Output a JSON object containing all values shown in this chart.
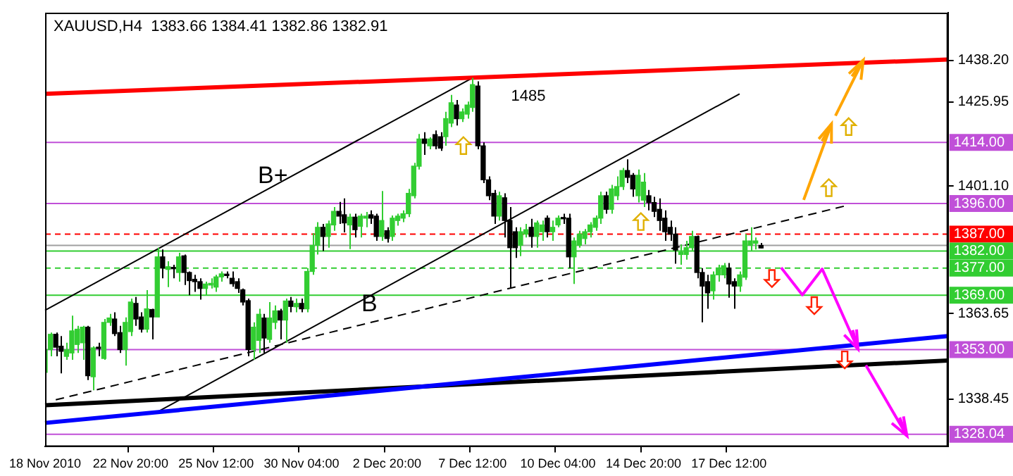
{
  "chart_data": {
    "type": "candlestick",
    "title": "XAUUSD,H4  1383.66 1384.41 1382.86 1382.91",
    "colors": [
      "#32cd32",
      "#32cd32",
      "#000000",
      "#000000",
      "#32cd32",
      "#32cd32",
      "#32cd32",
      "#32cd32",
      "#000000",
      "#32cd32",
      "#000000",
      "#32cd32",
      "#32cd32",
      "#000000",
      "#000000",
      "#32cd32",
      "#32cd32",
      "#000000",
      "#000000",
      "#32cd32",
      "#000000",
      "#32cd32",
      "#000000",
      "#32cd32",
      "#000000",
      "#32cd32",
      "#000000",
      "#000000",
      "#000000",
      "#000000",
      "#32cd32",
      "#32cd32",
      "#32cd32",
      "#32cd32",
      "#000000",
      "#000000",
      "#000000",
      "#000000",
      "#000000",
      "#32cd32",
      "#32cd32",
      "#000000",
      "#32cd32",
      "#32cd32",
      "#000000",
      "#32cd32",
      "#000000",
      "#32cd32",
      "#000000",
      "#32cd32",
      "#32cd32",
      "#32cd32",
      "#000000",
      "#32cd32",
      "#32cd32",
      "#000000",
      "#000000",
      "#32cd32",
      "#000000",
      "#32cd32",
      "#32cd32",
      "#000000",
      "#000000",
      "#32cd32",
      "#000000",
      "#32cd32",
      "#32cd32",
      "#32cd32",
      "#32cd32",
      "#32cd32",
      "#32cd32",
      "#000000",
      "#32cd32",
      "#000000",
      "#000000",
      "#32cd32",
      "#32cd32",
      "#000000",
      "#32cd32",
      "#32cd32",
      "#32cd32",
      "#000000",
      "#000000",
      "#000000",
      "#000000",
      "#32cd32",
      "#000000",
      "#000000",
      "#000000",
      "#32cd32",
      "#32cd32",
      "#000000",
      "#32cd32",
      "#32cd32",
      "#000000",
      "#32cd32",
      "#32cd32",
      "#000000",
      "#000000",
      "#32cd32",
      "#32cd32",
      "#32cd32",
      "#32cd32",
      "#32cd32",
      "#32cd32",
      "#000000",
      "#32cd32",
      "#32cd32",
      "#32cd32",
      "#000000",
      "#000000",
      "#32cd32",
      "#32cd32",
      "#000000",
      "#000000",
      "#000000",
      "#000000",
      "#000000",
      "#000000",
      "#32cd32",
      "#32cd32",
      "#32cd32",
      "#000000",
      "#000000",
      "#000000",
      "#32cd32",
      "#32cd32",
      "#32cd32",
      "#000000",
      "#000000",
      "#32cd32",
      "#32cd32",
      "#32cd32",
      "#32cd32",
      "#000000",
      null,
      null,
      null,
      null,
      null,
      null,
      null,
      null,
      null,
      null,
      null,
      null,
      null,
      null,
      null,
      null,
      null,
      null,
      null,
      null,
      null,
      null,
      null,
      null,
      null,
      null,
      null,
      null,
      null,
      null,
      null,
      null,
      null,
      null,
      null
    ],
    "categories": [
      "18 Nov 2010",
      null,
      null,
      null,
      null,
      null,
      null,
      null,
      null,
      null,
      null,
      null,
      null,
      null,
      null,
      null,
      "22 Nov 20:00",
      null,
      null,
      null,
      null,
      null,
      null,
      null,
      null,
      null,
      null,
      null,
      null,
      null,
      null,
      null,
      "25 Nov 12:00",
      null,
      null,
      null,
      null,
      null,
      null,
      null,
      null,
      null,
      null,
      null,
      null,
      null,
      null,
      null,
      "30 Nov 04:00",
      null,
      null,
      null,
      null,
      null,
      null,
      null,
      null,
      null,
      null,
      null,
      null,
      null,
      null,
      null,
      "2 Dec 20:00",
      null,
      null,
      null,
      null,
      null,
      null,
      null,
      null,
      null,
      null,
      null,
      null,
      null,
      null,
      null,
      "7 Dec 12:00",
      null,
      null,
      null,
      null,
      null,
      null,
      null,
      null,
      null,
      null,
      null,
      null,
      null,
      null,
      null,
      "10 Dec 04:00",
      null,
      null,
      null,
      null,
      null,
      null,
      null,
      null,
      null,
      null,
      null,
      null,
      null,
      null,
      null,
      "14 Dec 20:00",
      null,
      null,
      null,
      null,
      null,
      null,
      null,
      null,
      null,
      null,
      null,
      null,
      null,
      null,
      null,
      "17 Dec 12:00",
      null,
      null,
      null,
      null,
      null,
      null,
      null,
      null,
      null,
      null,
      null,
      null,
      null,
      null,
      null,
      null,
      null,
      null,
      null,
      null,
      null,
      null,
      null,
      null,
      null,
      null,
      null,
      null,
      null,
      null,
      null,
      null,
      null,
      null,
      null,
      null,
      null,
      null,
      null,
      null,
      null
    ],
    "ohlc": [
      [
        1346.3,
        1353.7,
        1345.7,
        1353
      ],
      [
        1353,
        1358,
        1351,
        1357.5
      ],
      [
        1357.5,
        1358,
        1351,
        1353.7
      ],
      [
        1354,
        1357,
        1346,
        1352.5
      ],
      [
        1351,
        1355,
        1350,
        1353
      ],
      [
        1352,
        1363,
        1350,
        1358.5
      ],
      [
        1354.5,
        1360,
        1352,
        1359
      ],
      [
        1355,
        1360,
        1350,
        1359.6
      ],
      [
        1359.6,
        1360,
        1344,
        1345.3
      ],
      [
        1345,
        1354,
        1341,
        1353.5
      ],
      [
        1353.5,
        1355,
        1351,
        1353.3
      ],
      [
        1350.4,
        1362,
        1350,
        1361
      ],
      [
        1361,
        1363.5,
        1360,
        1362.3
      ],
      [
        1362,
        1364,
        1357,
        1357.7
      ],
      [
        1358,
        1360,
        1352,
        1353
      ],
      [
        1353,
        1362.5,
        1348.3,
        1361
      ],
      [
        1358.3,
        1368,
        1357,
        1367
      ],
      [
        1366.6,
        1368.5,
        1360,
        1362
      ],
      [
        1362.6,
        1364,
        1358,
        1359
      ],
      [
        1359,
        1370.5,
        1358,
        1365
      ],
      [
        1364.8,
        1365,
        1356,
        1362.6
      ],
      [
        1362.6,
        1383,
        1362.6,
        1380.3
      ],
      [
        1380.3,
        1382.5,
        1374,
        1377
      ],
      [
        1376.6,
        1379,
        1371.4,
        1377.4
      ],
      [
        1377,
        1378,
        1374,
        1376.8
      ],
      [
        1375.7,
        1381.5,
        1373,
        1380.3
      ],
      [
        1380.6,
        1381,
        1372,
        1375.7
      ],
      [
        1375.7,
        1376,
        1369,
        1373.3
      ],
      [
        1373.7,
        1375,
        1370,
        1373
      ],
      [
        1373,
        1374,
        1367.7,
        1371
      ],
      [
        1371,
        1373,
        1369,
        1372.3
      ],
      [
        1372,
        1374,
        1371,
        1372.5
      ],
      [
        1371.4,
        1375,
        1370,
        1374.4
      ],
      [
        1374.4,
        1376,
        1373,
        1375.3
      ],
      [
        1375,
        1376,
        1374,
        1374.8
      ],
      [
        1374,
        1376,
        1371.5,
        1372.4
      ],
      [
        1373,
        1374,
        1369.7,
        1371
      ],
      [
        1370.6,
        1371,
        1366,
        1367
      ],
      [
        1367.4,
        1368,
        1351,
        1353
      ],
      [
        1353,
        1361,
        1350,
        1359.6
      ],
      [
        1355.7,
        1365,
        1352,
        1363.4
      ],
      [
        1362.3,
        1363.5,
        1352,
        1356.4
      ],
      [
        1356,
        1367,
        1355,
        1362.3
      ],
      [
        1361,
        1366,
        1359,
        1364.4
      ],
      [
        1364.4,
        1365,
        1356,
        1361.7
      ],
      [
        1361.7,
        1368,
        1355,
        1367.3
      ],
      [
        1367.3,
        1368.5,
        1364,
        1365.7
      ],
      [
        1365.6,
        1368,
        1364,
        1366.6
      ],
      [
        1366.6,
        1368,
        1364,
        1365
      ],
      [
        1365,
        1377,
        1364,
        1376
      ],
      [
        1376,
        1387.3,
        1375,
        1383.7
      ],
      [
        1383.7,
        1390.5,
        1381,
        1389
      ],
      [
        1389,
        1390,
        1382,
        1386.3
      ],
      [
        1386.3,
        1391,
        1383,
        1390
      ],
      [
        1389.7,
        1395,
        1388,
        1393.7
      ],
      [
        1393.7,
        1396.5,
        1390,
        1392.3
      ],
      [
        1392.7,
        1397.5,
        1387.5,
        1390.3
      ],
      [
        1389.7,
        1393,
        1382.6,
        1392
      ],
      [
        1392,
        1393,
        1386,
        1388.3
      ],
      [
        1389.3,
        1393,
        1386,
        1392.3
      ],
      [
        1391.7,
        1393.5,
        1389,
        1392.3
      ],
      [
        1392.7,
        1394,
        1390,
        1391.7
      ],
      [
        1392.3,
        1393,
        1385,
        1386.3
      ],
      [
        1386.3,
        1399.7,
        1385,
        1391
      ],
      [
        1388,
        1389,
        1384.5,
        1385.7
      ],
      [
        1386.3,
        1392.5,
        1385,
        1391.7
      ],
      [
        1391,
        1393,
        1389.5,
        1392.3
      ],
      [
        1391.7,
        1394,
        1390.5,
        1393
      ],
      [
        1393,
        1400.3,
        1392,
        1399
      ],
      [
        1398.3,
        1408,
        1397.5,
        1407
      ],
      [
        1407,
        1416.5,
        1406,
        1415
      ],
      [
        1415,
        1417,
        1410.3,
        1413.7
      ],
      [
        1413,
        1415.5,
        1412,
        1415
      ],
      [
        1416.3,
        1417.5,
        1412,
        1413
      ],
      [
        1415.7,
        1417,
        1411.5,
        1412.3
      ],
      [
        1415.7,
        1423,
        1413,
        1421
      ],
      [
        1419.7,
        1428,
        1418.5,
        1425.7
      ],
      [
        1425,
        1426.5,
        1419,
        1421
      ],
      [
        1421,
        1424,
        1420,
        1423
      ],
      [
        1422.3,
        1426,
        1421,
        1425
      ],
      [
        1424.3,
        1433,
        1423,
        1431
      ],
      [
        1430.6,
        1432,
        1412,
        1413
      ],
      [
        1413,
        1414,
        1402,
        1403
      ],
      [
        1403,
        1404,
        1397,
        1398.3
      ],
      [
        1399,
        1400,
        1390,
        1392.3
      ],
      [
        1392.3,
        1399.5,
        1391,
        1398.3
      ],
      [
        1397.7,
        1399,
        1386,
        1391
      ],
      [
        1391,
        1395,
        1371,
        1383
      ],
      [
        1387.7,
        1389,
        1380,
        1383
      ],
      [
        1383.7,
        1389,
        1380.5,
        1387.7
      ],
      [
        1387,
        1390,
        1386,
        1388.3
      ],
      [
        1389,
        1391.5,
        1383,
        1386.3
      ],
      [
        1386.3,
        1391,
        1383,
        1390.3
      ],
      [
        1387.7,
        1391,
        1385,
        1389.7
      ],
      [
        1391.7,
        1392.5,
        1386,
        1387.7
      ],
      [
        1387.7,
        1391,
        1385,
        1389
      ],
      [
        1389.7,
        1392.5,
        1389,
        1391.7
      ],
      [
        1391.7,
        1393,
        1390,
        1391.5
      ],
      [
        1391.7,
        1393,
        1377,
        1380.3
      ],
      [
        1380.3,
        1386,
        1372.3,
        1385
      ],
      [
        1383.7,
        1388,
        1383,
        1387
      ],
      [
        1385.7,
        1388.5,
        1384,
        1387.7
      ],
      [
        1387.7,
        1390.5,
        1386,
        1389.7
      ],
      [
        1389,
        1392.5,
        1388,
        1391.7
      ],
      [
        1391.7,
        1399.5,
        1390,
        1398.3
      ],
      [
        1398.3,
        1399.5,
        1393,
        1394.3
      ],
      [
        1394.3,
        1401.5,
        1393,
        1400.3
      ],
      [
        1398.3,
        1404,
        1397,
        1401
      ],
      [
        1401,
        1406.5,
        1400,
        1405.7
      ],
      [
        1405.7,
        1409,
        1402,
        1403.7
      ],
      [
        1404.3,
        1405,
        1398,
        1400.3
      ],
      [
        1398.3,
        1406,
        1396.3,
        1404.3
      ],
      [
        1397,
        1405,
        1395,
        1402.3
      ],
      [
        1398.3,
        1400,
        1394,
        1396.3
      ],
      [
        1396.3,
        1398,
        1392,
        1393.7
      ],
      [
        1394.3,
        1397.5,
        1388,
        1391
      ],
      [
        1391.7,
        1394,
        1385,
        1387.7
      ],
      [
        1389,
        1391,
        1385,
        1387
      ],
      [
        1387,
        1389,
        1378.3,
        1382.3
      ],
      [
        1381,
        1384,
        1378,
        1381.7
      ],
      [
        1381,
        1385,
        1379.5,
        1383
      ],
      [
        1383,
        1388,
        1382,
        1386.3
      ],
      [
        1386.3,
        1386.6,
        1374,
        1375.7
      ],
      [
        1375.7,
        1377,
        1361,
        1371.7
      ],
      [
        1373,
        1375,
        1365,
        1369.7
      ],
      [
        1370.3,
        1376,
        1367.7,
        1375
      ],
      [
        1375,
        1378,
        1373,
        1377
      ],
      [
        1375,
        1378.5,
        1374,
        1377.7
      ],
      [
        1377,
        1378.5,
        1368.3,
        1372.3
      ],
      [
        1373,
        1374,
        1365,
        1371.7
      ],
      [
        1371.7,
        1376,
        1370,
        1375
      ],
      [
        1374.3,
        1387,
        1373.5,
        1385
      ],
      [
        1383.7,
        1389,
        1382,
        1385
      ],
      [
        1384.3,
        1386,
        1382.5,
        1385
      ],
      [
        1383.66,
        1384.41,
        1382.86,
        1382.91
      ],
      null,
      null,
      null,
      null,
      null,
      null,
      null,
      null,
      null,
      null,
      null,
      null,
      null,
      null,
      null,
      null,
      null,
      null,
      null,
      null,
      null,
      null,
      null,
      null,
      null,
      null,
      null,
      null,
      null,
      null,
      null,
      null,
      null,
      null,
      null
    ],
    "series": [
      {
        "type": "line",
        "color": "#ff0000",
        "values": [
          1428.3,
          null,
          null,
          null,
          null,
          null,
          null,
          null,
          null,
          null,
          null,
          null,
          null,
          null,
          null,
          null,
          null,
          null,
          null,
          null,
          null,
          null,
          null,
          null,
          null,
          null,
          null,
          null,
          null,
          null,
          null,
          null,
          null,
          null,
          null,
          null,
          null,
          null,
          null,
          null,
          null,
          null,
          null,
          null,
          null,
          null,
          null,
          null,
          null,
          null,
          null,
          null,
          null,
          null,
          null,
          null,
          null,
          null,
          null,
          null,
          null,
          null,
          null,
          null,
          null,
          null,
          null,
          null,
          null,
          null,
          null,
          null,
          null,
          null,
          null,
          null,
          null,
          null,
          null,
          null,
          null,
          null,
          null,
          null,
          null,
          null,
          null,
          null,
          null,
          null,
          null,
          null,
          null,
          null,
          null,
          null,
          null,
          null,
          null,
          null,
          null,
          null,
          null,
          null,
          null,
          null,
          null,
          null,
          null,
          null,
          null,
          null,
          null,
          null,
          null,
          null,
          null,
          null,
          null,
          null,
          null,
          null,
          null,
          null,
          null,
          null,
          null,
          null,
          null,
          null,
          null,
          null,
          null,
          null,
          null,
          null,
          null,
          null,
          null,
          null,
          null,
          null,
          null,
          null,
          null,
          null,
          null,
          null,
          null,
          null,
          null,
          null,
          null,
          null,
          null,
          null,
          null,
          null,
          null,
          null,
          null,
          null,
          null,
          null,
          null,
          null,
          null,
          null,
          null,
          1438.4
        ]
      },
      {
        "type": "line",
        "color": "#0000ff",
        "values": [
          1331.4,
          null,
          null,
          null,
          null,
          null,
          null,
          null,
          null,
          null,
          null,
          null,
          null,
          null,
          null,
          null,
          null,
          null,
          null,
          null,
          null,
          null,
          null,
          null,
          null,
          null,
          null,
          null,
          null,
          null,
          null,
          null,
          null,
          null,
          null,
          null,
          null,
          null,
          null,
          null,
          null,
          null,
          null,
          null,
          null,
          null,
          null,
          null,
          null,
          null,
          null,
          null,
          null,
          null,
          null,
          null,
          null,
          null,
          null,
          null,
          null,
          null,
          null,
          null,
          null,
          null,
          null,
          null,
          null,
          null,
          null,
          null,
          null,
          null,
          null,
          null,
          null,
          null,
          null,
          null,
          null,
          null,
          null,
          null,
          null,
          null,
          null,
          null,
          null,
          null,
          null,
          null,
          null,
          null,
          null,
          null,
          null,
          null,
          null,
          null,
          null,
          null,
          null,
          null,
          null,
          null,
          null,
          null,
          null,
          null,
          null,
          null,
          null,
          null,
          null,
          null,
          null,
          null,
          null,
          null,
          null,
          null,
          null,
          null,
          null,
          null,
          null,
          null,
          null,
          null,
          null,
          null,
          null,
          null,
          null,
          null,
          null,
          null,
          null,
          null,
          null,
          null,
          null,
          null,
          null,
          null,
          null,
          null,
          null,
          null,
          null,
          null,
          null,
          null,
          null,
          null,
          null,
          null,
          null,
          null,
          null,
          null,
          null,
          null,
          null,
          null,
          null,
          null,
          null,
          1357.0
        ]
      },
      {
        "type": "line",
        "color": "#000000",
        "values": [
          1336.6,
          null,
          null,
          null,
          null,
          null,
          null,
          null,
          null,
          null,
          null,
          null,
          null,
          null,
          null,
          null,
          null,
          null,
          null,
          null,
          null,
          null,
          null,
          null,
          null,
          null,
          null,
          null,
          null,
          null,
          null,
          null,
          null,
          null,
          null,
          null,
          null,
          null,
          null,
          null,
          null,
          null,
          null,
          null,
          null,
          null,
          null,
          null,
          null,
          null,
          null,
          null,
          null,
          null,
          null,
          null,
          null,
          null,
          null,
          null,
          null,
          null,
          null,
          null,
          null,
          null,
          null,
          null,
          null,
          null,
          null,
          null,
          null,
          null,
          null,
          null,
          null,
          null,
          null,
          null,
          null,
          null,
          null,
          null,
          null,
          null,
          null,
          null,
          null,
          null,
          null,
          null,
          null,
          null,
          null,
          null,
          null,
          null,
          null,
          null,
          null,
          null,
          null,
          null,
          null,
          null,
          null,
          null,
          null,
          null,
          null,
          null,
          null,
          null,
          null,
          null,
          null,
          null,
          null,
          null,
          null,
          null,
          null,
          null,
          null,
          null,
          null,
          null,
          null,
          null,
          null,
          null,
          null,
          null,
          null,
          null,
          null,
          null,
          null,
          null,
          null,
          null,
          null,
          null,
          null,
          null,
          null,
          null,
          null,
          null,
          null,
          null,
          null,
          null,
          null,
          null,
          null,
          null,
          null,
          null,
          null,
          null,
          null,
          null,
          null,
          null,
          null,
          null,
          null,
          1349.8
        ]
      },
      {
        "type": "line",
        "color": "#000000",
        "values": [
          1364.6,
          null,
          null,
          null,
          null,
          null,
          null,
          null,
          null,
          null,
          null,
          null,
          null,
          null,
          null,
          null,
          null,
          null,
          null,
          null,
          null,
          null,
          null,
          null,
          null,
          null,
          null,
          null,
          null,
          null,
          null,
          null,
          null,
          null,
          null,
          null,
          null,
          null,
          null,
          null,
          null,
          null,
          null,
          null,
          null,
          null,
          null,
          null,
          null,
          null,
          null,
          null,
          null,
          null,
          null,
          null,
          null,
          null,
          null,
          null,
          null,
          null,
          null,
          null,
          null,
          null,
          null,
          null,
          null,
          null,
          null,
          null,
          null,
          null,
          null,
          null,
          null,
          null,
          null,
          null,
          1433.0,
          null,
          null,
          null,
          null,
          null,
          null,
          null,
          null,
          null,
          null,
          null,
          null,
          null,
          null,
          null,
          null,
          null,
          null,
          null,
          null,
          null,
          null,
          null,
          null,
          null,
          null,
          null,
          null,
          null,
          null,
          null,
          null,
          null,
          null,
          null,
          null,
          null,
          null,
          null,
          null,
          null,
          null,
          null,
          null,
          null,
          null,
          null,
          null,
          null,
          null,
          null,
          null,
          null,
          null,
          null,
          null,
          null,
          null,
          null,
          null,
          null,
          null,
          null,
          null,
          null,
          null,
          null,
          null,
          null,
          null,
          null,
          null,
          null,
          null,
          null,
          null,
          null,
          null,
          null,
          null,
          null,
          null,
          null,
          null,
          null,
          null,
          null,
          null,
          null
        ]
      },
      {
        "type": "line",
        "color": "#000000",
        "values": [
          null,
          null,
          null,
          null,
          null,
          null,
          null,
          null,
          null,
          null,
          null,
          null,
          null,
          null,
          null,
          null,
          null,
          null,
          null,
          null,
          null,
          1334.6,
          null,
          null,
          null,
          null,
          null,
          null,
          null,
          null,
          null,
          null,
          null,
          null,
          null,
          null,
          null,
          null,
          null,
          null,
          null,
          null,
          null,
          null,
          null,
          null,
          null,
          null,
          null,
          null,
          null,
          null,
          null,
          null,
          null,
          null,
          null,
          null,
          null,
          null,
          null,
          null,
          null,
          null,
          null,
          null,
          null,
          null,
          null,
          null,
          null,
          null,
          null,
          null,
          null,
          null,
          null,
          null,
          null,
          null,
          null,
          null,
          null,
          null,
          null,
          null,
          null,
          null,
          null,
          null,
          null,
          null,
          null,
          null,
          null,
          null,
          null,
          null,
          null,
          null,
          null,
          null,
          null,
          null,
          null,
          null,
          null,
          null,
          null,
          null,
          null,
          null,
          null,
          null,
          null,
          null,
          null,
          null,
          null,
          null,
          null,
          null,
          null,
          null,
          null,
          null,
          null,
          null,
          null,
          null,
          1428.3,
          null,
          null,
          null,
          null,
          null,
          null,
          null,
          null,
          null,
          null,
          null,
          null,
          null,
          null,
          null,
          null,
          null,
          null,
          null,
          null,
          null,
          null,
          null,
          null,
          null,
          null,
          null,
          null,
          null,
          null,
          null,
          null,
          null,
          null,
          null,
          null,
          null,
          null,
          null
        ]
      },
      {
        "type": "line",
        "color": "#000000",
        "line_style": "dashed",
        "values": [
          null,
          null,
          1338.2,
          null,
          null,
          null,
          null,
          null,
          null,
          null,
          null,
          null,
          null,
          null,
          null,
          null,
          null,
          null,
          null,
          null,
          null,
          null,
          null,
          null,
          null,
          null,
          null,
          null,
          null,
          null,
          null,
          null,
          null,
          null,
          null,
          null,
          null,
          null,
          null,
          null,
          null,
          null,
          null,
          null,
          null,
          null,
          null,
          null,
          null,
          null,
          null,
          null,
          null,
          null,
          null,
          null,
          null,
          null,
          null,
          null,
          null,
          null,
          null,
          null,
          null,
          null,
          null,
          null,
          null,
          null,
          null,
          null,
          null,
          null,
          null,
          null,
          null,
          null,
          null,
          null,
          null,
          null,
          null,
          null,
          null,
          null,
          null,
          null,
          null,
          null,
          null,
          null,
          null,
          null,
          null,
          null,
          null,
          null,
          null,
          null,
          null,
          null,
          null,
          null,
          null,
          null,
          null,
          null,
          null,
          null,
          null,
          null,
          null,
          null,
          null,
          null,
          null,
          null,
          null,
          null,
          null,
          null,
          null,
          null,
          null,
          null,
          null,
          null,
          null,
          null,
          null,
          null,
          null,
          null,
          null,
          null,
          null,
          null,
          null,
          null,
          null,
          null,
          null,
          null,
          null,
          null,
          null,
          null,
          null,
          null,
          1395.4,
          null,
          null,
          null,
          null,
          null,
          null,
          null,
          null,
          null,
          null,
          null,
          null,
          null,
          null,
          null,
          null,
          null,
          null,
          null
        ]
      }
    ],
    "ylim": [
      1324.4,
      1452.2
    ],
    "yticks": [
      {
        "value": 1438.2,
        "label": "1438.20"
      },
      {
        "value": 1425.95,
        "label": "1425.95"
      },
      {
        "value": 1401.1,
        "label": "1401.10"
      },
      {
        "value": 1363.65,
        "label": "1363.65"
      },
      {
        "value": 1338.45,
        "label": "1338.45"
      }
    ],
    "ref_lines": [
      {
        "axis": "y",
        "value": 1414,
        "label": "1414.00",
        "color": "#c050d8"
      },
      {
        "axis": "y",
        "value": 1396,
        "label": "1396.00",
        "color": "#c050d8"
      },
      {
        "axis": "y",
        "value": 1387,
        "label": "1387.00",
        "color": "#ff0000",
        "line_style": "dashed"
      },
      {
        "axis": "y",
        "value": 1383.7,
        "color": "#a0a0a0"
      },
      {
        "axis": "y",
        "value": 1382,
        "label": "1382.00",
        "color": "#32cd32"
      },
      {
        "axis": "y",
        "value": 1377,
        "label": "1377.00",
        "color": "#32cd32",
        "line_style": "dashed"
      },
      {
        "axis": "y",
        "value": 1369,
        "label": "1369.00",
        "color": "#32cd32"
      },
      {
        "axis": "y",
        "value": 1353,
        "label": "1353.00",
        "color": "#c050d8"
      },
      {
        "axis": "y",
        "value": 1328.04,
        "label": "1328.04",
        "color": "#c050d8"
      }
    ],
    "annotations": [
      "B+",
      "B",
      "1485"
    ],
    "grid": false,
    "legend": false
  }
}
